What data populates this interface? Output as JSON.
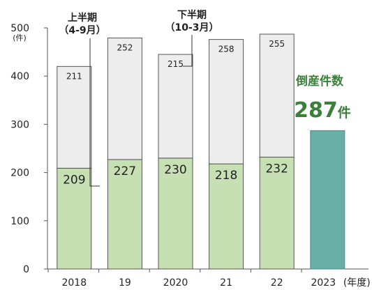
{
  "chart_data": {
    "type": "bar",
    "stacked": true,
    "categories": [
      "2018",
      "19",
      "2020",
      "21",
      "22",
      "2023"
    ],
    "x_suffix": "(年度)",
    "series": [
      {
        "name": "上半期\n(4-9月)",
        "values": [
          209,
          227,
          230,
          218,
          232,
          null
        ],
        "color": "#c6e0b4"
      },
      {
        "name": "下半期\n(10-3月)",
        "values": [
          211,
          252,
          215,
          258,
          255,
          null
        ],
        "color": "#ededed"
      }
    ],
    "highlight": {
      "category": "2023",
      "value": 287,
      "color": "#68ada6",
      "title": "倒産件数",
      "value_text": "287",
      "unit": "件"
    },
    "ylim": [
      0,
      500
    ],
    "yticks": [
      0,
      100,
      200,
      300,
      400,
      500
    ],
    "y_unit": "(件)",
    "grid": false
  },
  "annotations": {
    "first_half_line1": "上半期",
    "first_half_line2": "（4-9月）",
    "second_half_line1": "下半期",
    "second_half_line2": "（10-3月）"
  }
}
